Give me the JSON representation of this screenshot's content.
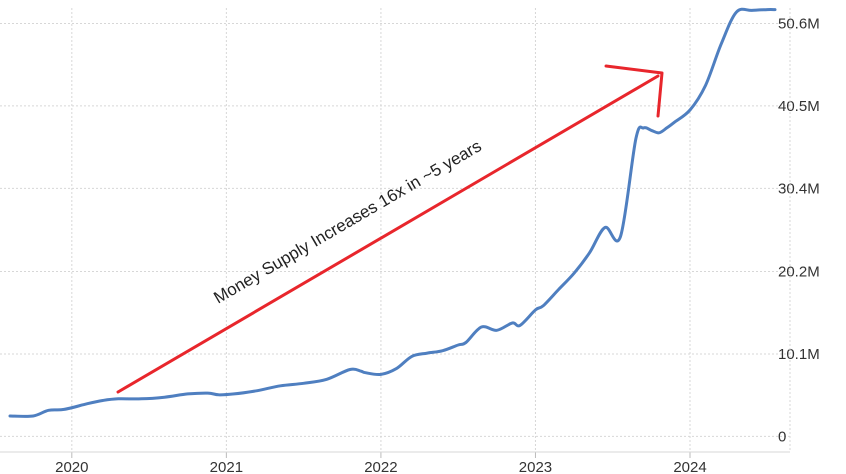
{
  "colors": {
    "series": "#4f7fc0",
    "annotation_arrow": "#e8262c",
    "grid": "#d7d7d7"
  },
  "chart_data": {
    "type": "line",
    "title": "",
    "xlabel": "",
    "ylabel": "",
    "x_ticks": [
      "2020",
      "2021",
      "2022",
      "2023",
      "2024"
    ],
    "y_ticks": [
      "0",
      "10.1M",
      "20.2M",
      "30.4M",
      "40.5M",
      "50.6M"
    ],
    "xlim": [
      2019.6,
      2024.55
    ],
    "ylim": [
      -0.2,
      52.5
    ],
    "y_unit": "M",
    "y_axis_side": "right",
    "grid": true,
    "series": [
      {
        "x": [
          2019.6,
          2019.75,
          2019.85,
          2019.95,
          2020.1,
          2020.2,
          2020.3,
          2020.45,
          2020.6,
          2020.75,
          2020.88,
          2020.95,
          2021.05,
          2021.2,
          2021.35,
          2021.5,
          2021.65,
          2021.8,
          2021.87,
          2021.9,
          2022.0,
          2022.1,
          2022.2,
          2022.3,
          2022.4,
          2022.5,
          2022.55,
          2022.65,
          2022.75,
          2022.85,
          2022.9,
          2023.0,
          2023.05,
          2023.15,
          2023.25,
          2023.35,
          2023.45,
          2023.55,
          2023.65,
          2023.7,
          2023.75,
          2023.8,
          2023.85,
          2023.9,
          2024.0,
          2024.1,
          2024.2,
          2024.3,
          2024.4,
          2024.5,
          2024.55
        ],
        "y": [
          2.5,
          2.5,
          3.2,
          3.3,
          4.0,
          4.4,
          4.6,
          4.6,
          4.8,
          5.2,
          5.3,
          5.1,
          5.2,
          5.6,
          6.2,
          6.5,
          7.0,
          8.2,
          8.0,
          7.8,
          7.6,
          8.3,
          9.8,
          10.2,
          10.5,
          11.2,
          11.5,
          13.4,
          13.0,
          13.9,
          13.6,
          15.5,
          16.0,
          18.0,
          20.0,
          22.5,
          25.6,
          24.5,
          36.5,
          37.8,
          37.5,
          37.2,
          37.8,
          38.5,
          40.0,
          43.0,
          48.0,
          52.0,
          52.2,
          52.3,
          52.3
        ],
        "interpolation_note_removed": true
      }
    ],
    "annotations": [
      {
        "text": "Money Supply Increases 16x in ~5 years"
      }
    ]
  }
}
